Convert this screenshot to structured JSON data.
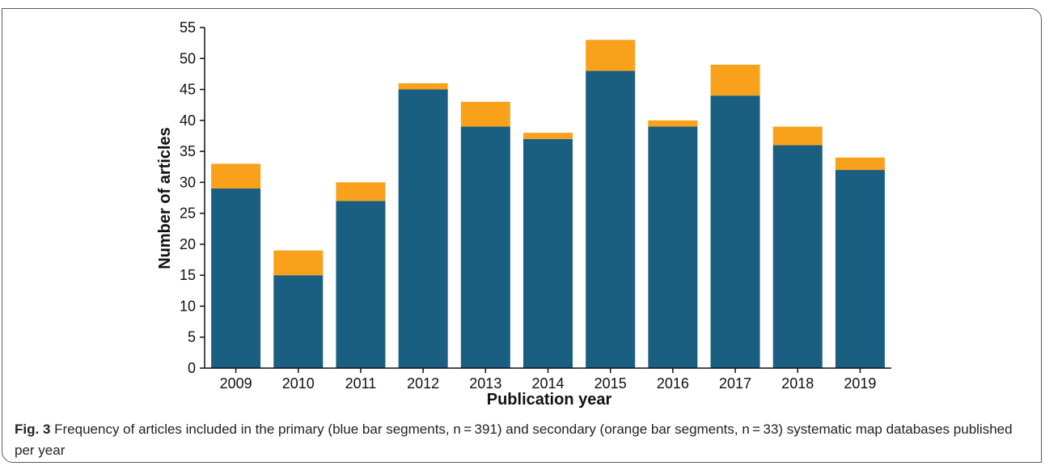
{
  "chart_data": {
    "type": "bar",
    "stacked": true,
    "categories": [
      "2009",
      "2010",
      "2011",
      "2012",
      "2013",
      "2014",
      "2015",
      "2016",
      "2017",
      "2018",
      "2019"
    ],
    "series": [
      {
        "color": "#1a5e82",
        "values": [
          29,
          15,
          27,
          45,
          39,
          37,
          48,
          39,
          44,
          36,
          32
        ]
      },
      {
        "color": "#f9a11b",
        "values": [
          4,
          4,
          3,
          1,
          4,
          1,
          5,
          1,
          5,
          3,
          2
        ]
      }
    ],
    "xlabel": "Publication year",
    "ylabel": "Number of articles",
    "ylim": [
      0,
      55
    ],
    "yticks": [
      0,
      5,
      10,
      15,
      20,
      25,
      30,
      35,
      40,
      45,
      50,
      55
    ],
    "grid": false,
    "legend": "none"
  },
  "caption": {
    "label": "Fig. 3",
    "text": "Frequency of articles included in the primary (blue bar segments, n = 391) and secondary (orange bar segments, n = 33) systematic map databases published per year"
  }
}
